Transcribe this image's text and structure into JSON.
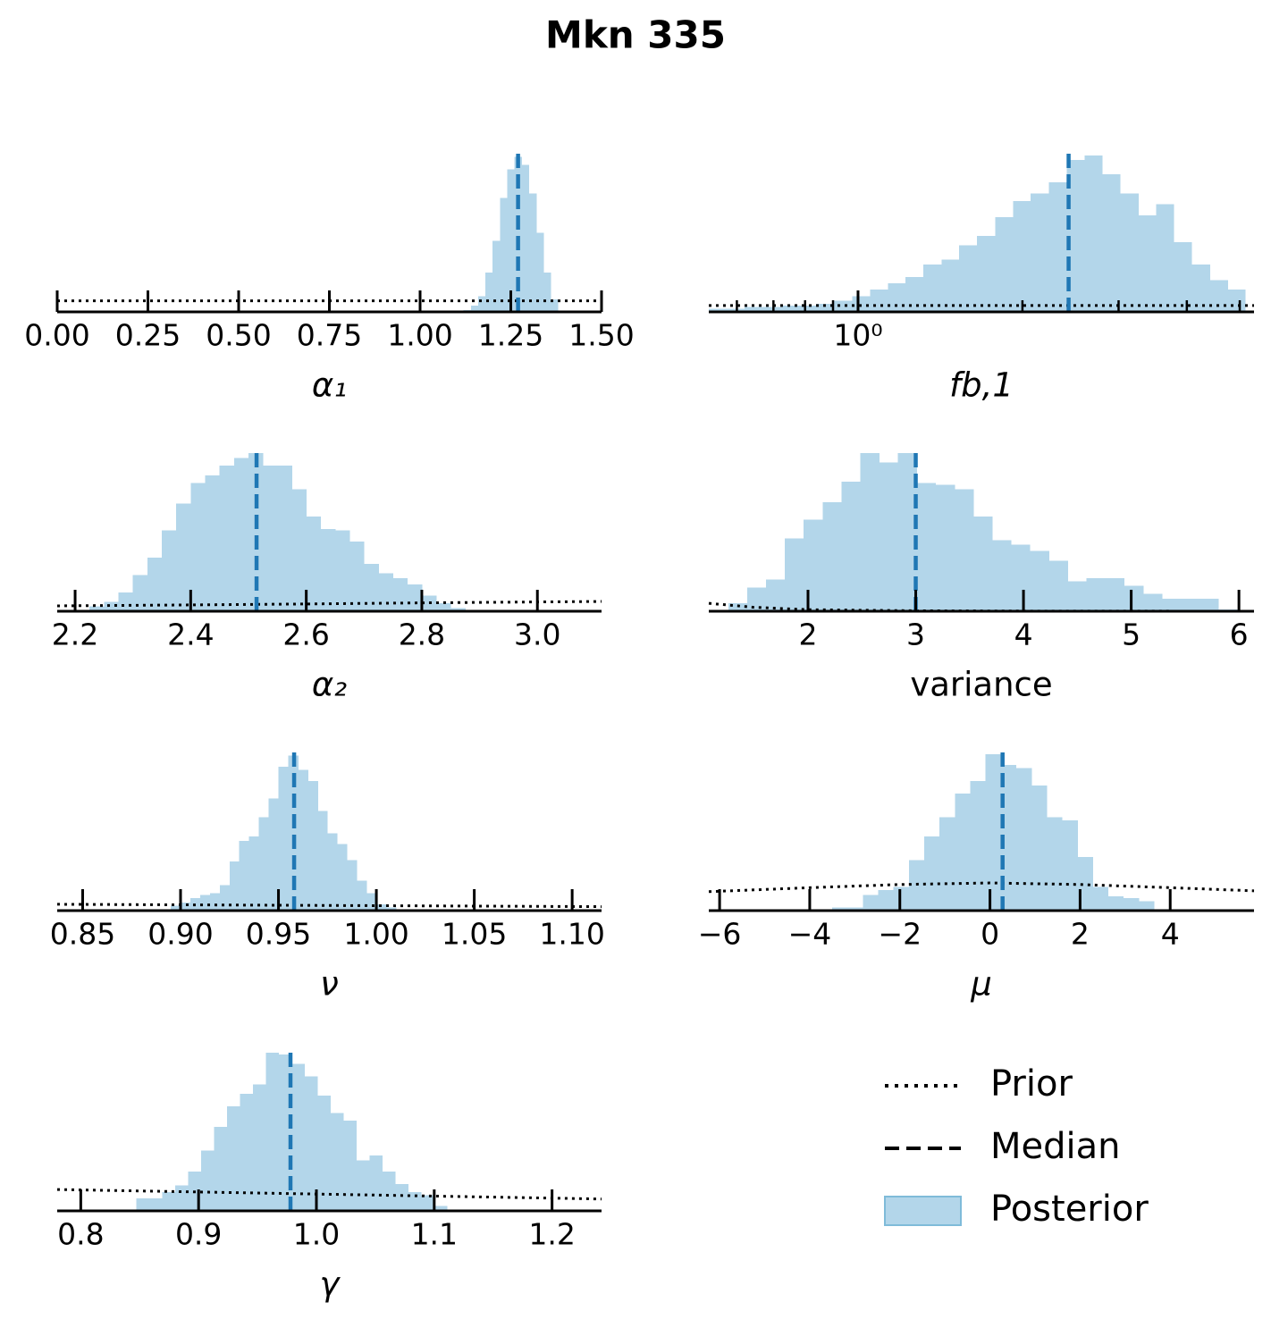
{
  "title": "Mkn 335",
  "legend": {
    "entries": [
      {
        "name": "Prior",
        "color": "#000000",
        "style": "dotted"
      },
      {
        "name": "Median",
        "color": "#000000",
        "style": "dashed"
      },
      {
        "name": "Posterior",
        "color": "#b3d6ea",
        "edge": "#7fbbd9",
        "style": "patch"
      }
    ]
  },
  "chart_data": [
    {
      "type": "histogram",
      "xlabel": "α₁",
      "color": "#b3d6ea",
      "median_color": "#1f77b4",
      "prior_color": "#000000",
      "bins": [
        1.12,
        1.14,
        1.16,
        1.18,
        1.2,
        1.22,
        1.24,
        1.26,
        1.28,
        1.3,
        1.32,
        1.34,
        1.36,
        1.38
      ],
      "counts": [
        1,
        4,
        10,
        25,
        45,
        72,
        90,
        98,
        93,
        75,
        50,
        25,
        8
      ],
      "median": 1.27,
      "prior": {
        "x": [
          0,
          1.5
        ],
        "y": [
          7,
          7
        ]
      },
      "xlim": [
        0,
        1.5
      ],
      "ylim": [
        0,
        100
      ],
      "xticks": [
        {
          "value": 0,
          "label": "0.00"
        },
        0.25,
        {
          "value": 0.5,
          "label": "0.50"
        },
        0.75,
        {
          "value": 1,
          "label": "1.00"
        },
        1.25,
        {
          "value": 1.5,
          "label": "1.50"
        }
      ]
    },
    {
      "type": "histogram",
      "xlabel": "fb,1",
      "log_x": true,
      "color": "#b3d6ea",
      "median_color": "#1f77b4",
      "prior_color": "#000000",
      "bins": [
        0.533,
        0.575,
        0.62,
        0.668,
        0.721,
        0.778,
        0.838,
        0.904,
        0.975,
        1.052,
        1.134,
        1.222,
        1.318,
        1.422,
        1.532,
        1.652,
        1.782,
        1.923,
        2.07,
        2.234,
        2.41,
        2.6,
        2.799,
        3.02,
        3.258,
        3.516,
        3.784,
        4.083,
        4.406,
        4.753,
        5.117
      ],
      "counts": [
        2,
        2,
        3,
        3,
        4,
        4,
        5,
        7,
        10,
        14,
        18,
        22,
        30,
        33,
        42,
        48,
        60,
        70,
        75,
        82,
        96,
        99,
        87,
        75,
        61,
        68,
        44,
        30,
        20,
        14
      ],
      "median": 2.43,
      "prior": {
        "x": [
          0.533,
          5.31
        ],
        "y": [
          4,
          4
        ]
      },
      "xlim": [
        0.533,
        5.31
      ],
      "ylim": [
        0,
        100
      ],
      "xticks": [
        {
          "value": 1,
          "label": "10⁰"
        }
      ],
      "xminorticks": [
        0.6,
        0.7,
        0.8,
        0.9,
        2,
        3,
        4,
        5
      ]
    },
    {
      "type": "histogram",
      "xlabel": "α₂",
      "color": "#b3d6ea",
      "median_color": "#1f77b4",
      "prior_color": "#000000",
      "bins": [
        2.225,
        2.25,
        2.275,
        2.3,
        2.325,
        2.35,
        2.375,
        2.4,
        2.425,
        2.45,
        2.475,
        2.5,
        2.525,
        2.55,
        2.575,
        2.6,
        2.625,
        2.65,
        2.675,
        2.7,
        2.725,
        2.75,
        2.775,
        2.8,
        2.825,
        2.85,
        2.875
      ],
      "counts": [
        3,
        6,
        12,
        23,
        34,
        51,
        68,
        81,
        86,
        92,
        97,
        100,
        92,
        92,
        77,
        60,
        52,
        51,
        44,
        30,
        24,
        21,
        17,
        10,
        5,
        2
      ],
      "median": 2.514,
      "prior": {
        "x": [
          2.169,
          2.4,
          2.6,
          2.8,
          3.111
        ],
        "y": [
          3.4,
          4,
          4.6,
          5.3,
          6.2
        ]
      },
      "xlim": [
        2.169,
        3.111
      ],
      "ylim": [
        0,
        100
      ],
      "xticks": [
        2.2,
        2.4,
        2.6,
        2.8,
        {
          "value": 3,
          "label": "3.0"
        }
      ]
    },
    {
      "type": "histogram",
      "xlabel": "variance",
      "color": "#b3d6ea",
      "median_color": "#1f77b4",
      "prior_color": "#000000",
      "bins": [
        1.26,
        1.435,
        1.61,
        1.785,
        1.96,
        2.135,
        2.31,
        2.485,
        2.66,
        2.835,
        3.01,
        3.185,
        3.36,
        3.535,
        3.71,
        3.885,
        4.06,
        4.235,
        4.41,
        4.585,
        4.76,
        4.935,
        5.11,
        5.285,
        5.46,
        5.635,
        5.81,
        5.985
      ],
      "counts": [
        5,
        15,
        20,
        46,
        58,
        69,
        82,
        100,
        94,
        100,
        81,
        80,
        77,
        60,
        45,
        42,
        38,
        32,
        19,
        21,
        21,
        16,
        11,
        8,
        8,
        8,
        1
      ],
      "median": 3.0,
      "prior": {
        "x": [
          1.079,
          1.5,
          2,
          3,
          4,
          6.14
        ],
        "y": [
          5,
          2.5,
          1,
          0.3,
          0.1,
          0
        ]
      },
      "xlim": [
        1.079,
        6.14
      ],
      "ylim": [
        0,
        100
      ],
      "xticks": [
        2,
        3,
        4,
        5,
        6
      ]
    },
    {
      "type": "histogram",
      "xlabel": "ν",
      "color": "#b3d6ea",
      "median_color": "#1f77b4",
      "prior_color": "#000000",
      "bins": [
        0.895,
        0.9,
        0.905,
        0.91,
        0.915,
        0.92,
        0.925,
        0.93,
        0.935,
        0.94,
        0.945,
        0.95,
        0.955,
        0.96,
        0.965,
        0.97,
        0.975,
        0.98,
        0.985,
        0.99,
        0.995,
        1.0,
        1.005,
        1.01
      ],
      "counts": [
        3,
        5,
        8,
        10,
        11,
        16,
        31,
        44,
        47,
        59,
        71,
        91,
        98,
        89,
        82,
        63,
        49,
        42,
        32,
        19,
        11,
        4,
        2
      ],
      "median": 0.958,
      "prior": {
        "x": [
          0.837,
          1.115
        ],
        "y": [
          4,
          2.5
        ]
      },
      "xlim": [
        0.837,
        1.115
      ],
      "ylim": [
        0,
        100
      ],
      "xticks": [
        0.85,
        {
          "value": 0.9,
          "label": "0.90"
        },
        0.95,
        {
          "value": 1,
          "label": "1.00"
        },
        1.05,
        {
          "value": 1.1,
          "label": "1.10"
        }
      ]
    },
    {
      "type": "histogram",
      "xlabel": "μ",
      "color": "#b3d6ea",
      "median_color": "#1f77b4",
      "prior_color": "#000000",
      "bins": [
        -3.5,
        -3.16,
        -2.82,
        -2.48,
        -2.14,
        -1.8,
        -1.46,
        -1.12,
        -0.78,
        -0.44,
        -0.1,
        0.24,
        0.58,
        0.92,
        1.26,
        1.6,
        1.94,
        2.28,
        2.62,
        2.96,
        3.3,
        3.64
      ],
      "counts": [
        2,
        2,
        10,
        13,
        15,
        32,
        47,
        59,
        74,
        82,
        99,
        92,
        90,
        79,
        59,
        57,
        34,
        15,
        9,
        8,
        6
      ],
      "median": 0.28,
      "prior": {
        "x": [
          -6.24,
          -4,
          -2,
          0,
          2,
          4,
          5.86
        ],
        "y": [
          12,
          14.5,
          16.5,
          17.5,
          16.5,
          14.5,
          12.5
        ]
      },
      "xlim": [
        -6.24,
        5.86
      ],
      "ylim": [
        0,
        100
      ],
      "xticks": [
        {
          "value": -6,
          "label": "−6"
        },
        {
          "value": -4,
          "label": "−4"
        },
        {
          "value": -2,
          "label": "−2"
        },
        0,
        2,
        4
      ]
    },
    {
      "type": "histogram",
      "xlabel": "γ",
      "color": "#b3d6ea",
      "median_color": "#1f77b4",
      "prior_color": "#000000",
      "bins": [
        0.847,
        0.858,
        0.869,
        0.88,
        0.891,
        0.902,
        0.913,
        0.924,
        0.935,
        0.946,
        0.957,
        0.968,
        0.979,
        0.99,
        1.001,
        1.012,
        1.023,
        1.034,
        1.045,
        1.056,
        1.067,
        1.078,
        1.089,
        1.1,
        1.111
      ],
      "counts": [
        8,
        8,
        12,
        16,
        25,
        38,
        53,
        66,
        74,
        80,
        100,
        99,
        93,
        85,
        73,
        62,
        57,
        32,
        35,
        25,
        17,
        12,
        10,
        3
      ],
      "median": 0.978,
      "prior": {
        "x": [
          0.78,
          1.242
        ],
        "y": [
          13.5,
          7.5
        ]
      },
      "xlim": [
        0.78,
        1.242
      ],
      "ylim": [
        0,
        100
      ],
      "xticks": [
        0.8,
        0.9,
        {
          "value": 1,
          "label": "1.0"
        },
        1.1,
        1.2
      ]
    }
  ]
}
